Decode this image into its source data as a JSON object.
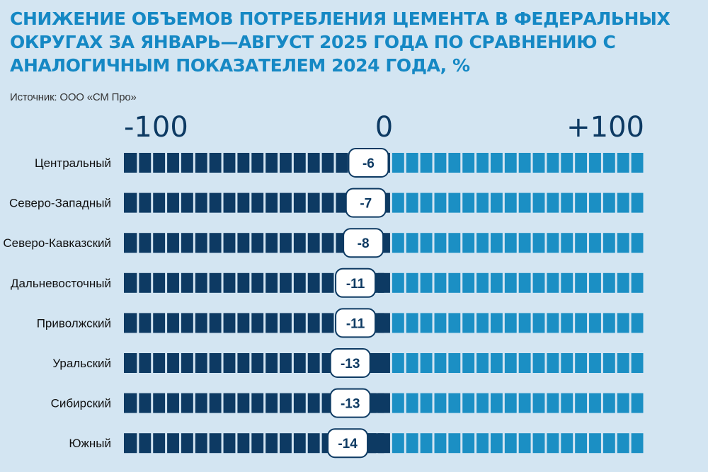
{
  "title": "СНИЖЕНИЕ ОБЪЕМОВ ПОТРЕБЛЕНИЯ ЦЕМЕНТА В ФЕДЕРАЛЬНЫХ ОКРУГАХ ЗА ЯНВАРЬ—АВГУСТ 2025 ГОДА ПО СРАВНЕНИЮ С АНАЛОГИЧНЫМ ПОКАЗАТЕЛЕМ 2024 ГОДА, %",
  "source": "Источник: ООО «СМ Про»",
  "colors": {
    "negative_track": "#0d3a63",
    "positive_track": "#1b8fc4",
    "background": "#d3e5f2",
    "title": "#1588c4"
  },
  "chart_data": {
    "type": "bar",
    "title": "СНИЖЕНИЕ ОБЪЕМОВ ПОТРЕБЛЕНИЯ ЦЕМЕНТА В ФЕДЕРАЛЬНЫХ ОКРУГАХ ЗА ЯНВАРЬ—АВГУСТ 2025 ГОДА ПО СРАВНЕНИЮ С АНАЛОГИЧНЫМ ПОКАЗАТЕЛЕМ 2024 ГОДА, %",
    "orientation": "horizontal",
    "xlim": [
      -100,
      100
    ],
    "x_tick_labels": [
      "-100",
      "0",
      "+100"
    ],
    "x_ticks": [
      -100,
      0,
      100
    ],
    "categories": [
      "Центральный",
      "Северо-Западный",
      "Северо-Кавказский",
      "Дальневосточный",
      "Приволжский",
      "Уральский",
      "Сибирский",
      "Южный"
    ],
    "values": [
      -6,
      -7,
      -8,
      -11,
      -11,
      -13,
      -13,
      -14
    ],
    "data_labels": [
      "-6",
      "-7",
      "-8",
      "-11",
      "-11",
      "-13",
      "-13",
      "-14"
    ],
    "grid": false
  }
}
